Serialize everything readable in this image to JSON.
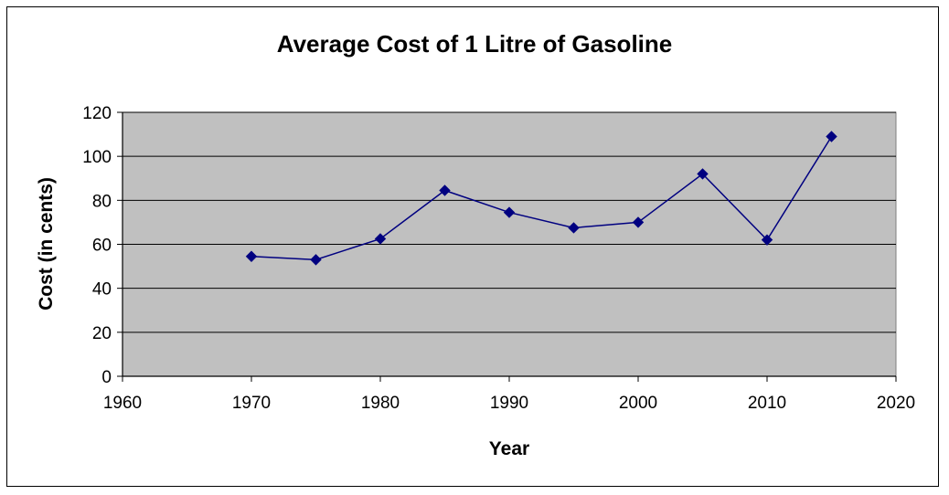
{
  "chart_data": {
    "type": "line",
    "title": "Average Cost of 1 Litre of Gasoline",
    "xlabel": "Year",
    "ylabel": "Cost (in cents)",
    "xlim": [
      1960,
      2020
    ],
    "ylim": [
      0,
      120
    ],
    "x_ticks": [
      1960,
      1970,
      1980,
      1990,
      2000,
      2010,
      2020
    ],
    "y_ticks": [
      0,
      20,
      40,
      60,
      80,
      100,
      120
    ],
    "grid": true,
    "legend": "none",
    "series": [
      {
        "x": [
          1970,
          1975,
          1980,
          1985,
          1990,
          1995,
          2000,
          2005,
          2010,
          2015
        ],
        "y": [
          54.5,
          53,
          62.5,
          84.5,
          74.5,
          67.5,
          70,
          92,
          62,
          109
        ],
        "color": "#000080",
        "marker": "diamond"
      }
    ],
    "colors": {
      "plot_background": "#c0c0c0",
      "gridline": "#000000",
      "line": "#000080"
    }
  }
}
